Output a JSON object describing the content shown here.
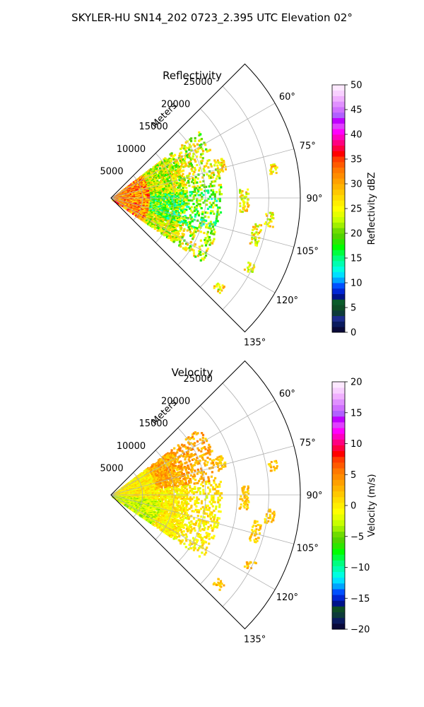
{
  "figure_title": "SKYLER-HU  SN14_202  0723_2.395 UTC Elevation 02°",
  "chart_data": [
    {
      "type": "heatmap",
      "subtype": "polar-sector (PPI)",
      "title": "Reflectivity",
      "radial_label": "Meters",
      "r_ticks": [
        5000,
        10000,
        15000,
        20000,
        25000
      ],
      "r_lim": [
        0,
        30000
      ],
      "theta_ticks": [
        "60°",
        "75°",
        "90°",
        "105°",
        "120°",
        "135°"
      ],
      "theta_values": [
        60,
        75,
        90,
        105,
        120,
        135
      ],
      "theta_lim": [
        45,
        135
      ],
      "grid": true,
      "colorbar": {
        "label": "Reflectivity dBZ",
        "ticks": [
          "0",
          "5",
          "10",
          "15",
          "20",
          "25",
          "30",
          "35",
          "40",
          "45",
          "50"
        ],
        "range": [
          0,
          50
        ],
        "colors": [
          "#0a0a3a",
          "#0b1b5e",
          "#1c2c8c",
          "#0d3b3a",
          "#0e4d26",
          "#0b5c2a",
          "#00138a",
          "#0026d4",
          "#0050ff",
          "#00a4ff",
          "#00e0ff",
          "#00ffe0",
          "#00ffb0",
          "#00ff80",
          "#00ff40",
          "#00ff00",
          "#2ee600",
          "#52d400",
          "#6fdc00",
          "#a0f000",
          "#c8ff00",
          "#e6ff00",
          "#ffff00",
          "#ffee00",
          "#ffdc00",
          "#ffc800",
          "#ffb400",
          "#ffa000",
          "#ff8c00",
          "#ff7800",
          "#ff5a00",
          "#ff3c00",
          "#ff0000",
          "#ff0040",
          "#ff0080",
          "#ff00c0",
          "#ff00ff",
          "#e040ff",
          "#c000ff",
          "#b060ff",
          "#d070ff",
          "#e090ff",
          "#f0b0ff",
          "#f8d0ff",
          "#fde8ff"
        ]
      }
    },
    {
      "type": "heatmap",
      "subtype": "polar-sector (PPI)",
      "title": "Velocity",
      "radial_label": "Meters",
      "r_ticks": [
        5000,
        10000,
        15000,
        20000,
        25000
      ],
      "r_lim": [
        0,
        30000
      ],
      "theta_ticks": [
        "60°",
        "75°",
        "90°",
        "105°",
        "120°",
        "135°"
      ],
      "theta_values": [
        60,
        75,
        90,
        105,
        120,
        135
      ],
      "theta_lim": [
        45,
        135
      ],
      "grid": true,
      "colorbar": {
        "label": "Velocity (m/s)",
        "ticks": [
          "−20",
          "−15",
          "−10",
          "−5",
          "0",
          "5",
          "10",
          "15",
          "20"
        ],
        "range": [
          -20,
          20
        ],
        "colors": [
          "#0a0a3a",
          "#0b1b5e",
          "#0d3b3a",
          "#0e4d26",
          "#00138a",
          "#0026d4",
          "#0050ff",
          "#00a4ff",
          "#00e0ff",
          "#00ffe0",
          "#00ffb0",
          "#00ff80",
          "#00ff40",
          "#00ff00",
          "#2ee600",
          "#52d400",
          "#6fdc00",
          "#a0f000",
          "#c8ff00",
          "#e6ff00",
          "#ffff00",
          "#ffee00",
          "#ffdc00",
          "#ffc800",
          "#ffb400",
          "#ffa000",
          "#ff8c00",
          "#ff7800",
          "#ff5a00",
          "#ff3c00",
          "#ff0000",
          "#ff0040",
          "#ff0080",
          "#ff00c0",
          "#ff00ff",
          "#e040ff",
          "#c000ff",
          "#b060ff",
          "#d070ff",
          "#e090ff",
          "#f0b0ff",
          "#f8d0ff",
          "#fde8ff"
        ]
      }
    }
  ]
}
